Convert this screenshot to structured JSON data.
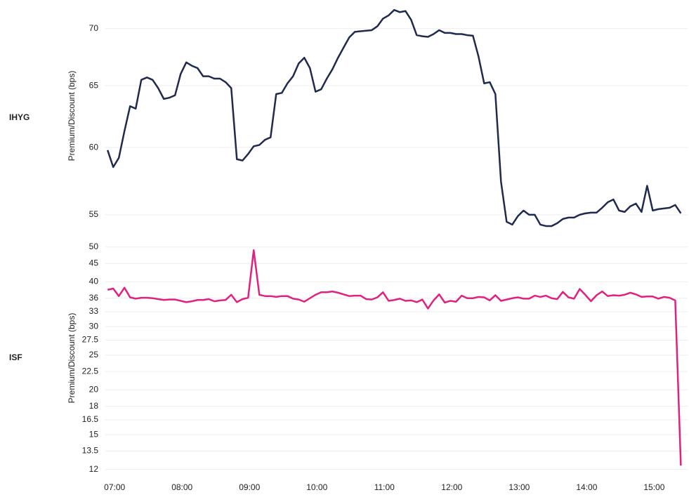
{
  "chart_data": [
    {
      "type": "line",
      "label": "IHYG",
      "y_label": "Premium/Discount (bps)",
      "log_scale": true,
      "grid": true,
      "x": [
        "07:00",
        "07:05",
        "07:10",
        "07:15",
        "07:20",
        "07:25",
        "07:30",
        "07:35",
        "07:40",
        "07:45",
        "07:50",
        "07:55",
        "08:00",
        "08:05",
        "08:10",
        "08:15",
        "08:20",
        "08:25",
        "08:30",
        "08:35",
        "08:40",
        "08:45",
        "08:50",
        "08:55",
        "09:00",
        "09:05",
        "09:10",
        "09:15",
        "09:20",
        "09:25",
        "09:30",
        "09:35",
        "09:40",
        "09:45",
        "09:50",
        "09:55",
        "10:00",
        "10:05",
        "10:10",
        "10:15",
        "10:20",
        "10:25",
        "10:30",
        "10:35",
        "10:40",
        "10:45",
        "10:50",
        "10:55",
        "11:00",
        "11:05",
        "11:10",
        "11:15",
        "11:20",
        "11:25",
        "11:30",
        "11:35",
        "11:40",
        "11:45",
        "11:50",
        "11:55",
        "12:00",
        "12:05",
        "12:10",
        "12:15",
        "12:20",
        "12:25",
        "12:30",
        "12:35",
        "12:40",
        "12:45",
        "12:50",
        "12:55",
        "13:00",
        "13:05",
        "13:10",
        "13:15",
        "13:20",
        "13:25",
        "13:30",
        "13:35",
        "13:40",
        "13:45",
        "13:50",
        "13:55",
        "14:00",
        "14:05",
        "14:10",
        "14:15",
        "14:20",
        "14:25",
        "14:30",
        "14:35",
        "14:40",
        "14:45",
        "14:50",
        "14:55",
        "15:00",
        "15:05",
        "15:10",
        "15:15",
        "15:20",
        "15:25",
        "15:30"
      ],
      "xlim": [
        "06:58",
        "15:36"
      ],
      "series": [
        {
          "color": "#1f2a4d",
          "values": [
            59.8,
            58.5,
            59.2,
            61.3,
            63.3,
            63.1,
            65.5,
            65.7,
            65.5,
            64.8,
            63.9,
            64.0,
            64.2,
            66.0,
            67.0,
            66.7,
            66.5,
            65.8,
            65.8,
            65.6,
            65.6,
            65.3,
            64.8,
            59.1,
            59.0,
            59.5,
            60.1,
            60.2,
            60.6,
            60.8,
            64.3,
            64.4,
            65.2,
            65.8,
            66.9,
            67.4,
            66.5,
            64.5,
            64.7,
            65.6,
            66.4,
            67.4,
            68.3,
            69.2,
            69.7,
            69.75,
            69.8,
            69.85,
            70.2,
            70.9,
            71.2,
            71.7,
            71.5,
            71.6,
            70.8,
            69.4,
            69.3,
            69.25,
            69.5,
            69.85,
            69.6,
            69.6,
            69.5,
            69.5,
            69.4,
            69.35,
            67.5,
            65.2,
            65.3,
            64.3,
            57.4,
            54.5,
            54.3,
            54.9,
            55.3,
            55.0,
            55.0,
            54.3,
            54.2,
            54.2,
            54.4,
            54.7,
            54.8,
            54.8,
            55.0,
            55.1,
            55.15,
            55.15,
            55.5,
            55.9,
            56.1,
            55.3,
            55.2,
            55.6,
            55.8,
            55.2,
            57.1,
            55.3,
            55.4,
            55.45,
            55.5,
            55.7,
            55.1
          ]
        }
      ],
      "ylim": [
        54.1,
        72.5
      ],
      "yticks": [
        55,
        60,
        65,
        70
      ]
    },
    {
      "type": "line",
      "label": "ISF",
      "y_label": "Premium/Discount (bps)",
      "log_scale": true,
      "grid": true,
      "x": [
        "07:00",
        "07:05",
        "07:10",
        "07:15",
        "07:20",
        "07:25",
        "07:30",
        "07:35",
        "07:40",
        "07:45",
        "07:50",
        "07:55",
        "08:00",
        "08:05",
        "08:10",
        "08:15",
        "08:20",
        "08:25",
        "08:30",
        "08:35",
        "08:40",
        "08:45",
        "08:50",
        "08:55",
        "09:00",
        "09:05",
        "09:10",
        "09:15",
        "09:20",
        "09:25",
        "09:30",
        "09:35",
        "09:40",
        "09:45",
        "09:50",
        "09:55",
        "10:00",
        "10:05",
        "10:10",
        "10:15",
        "10:20",
        "10:25",
        "10:30",
        "10:35",
        "10:40",
        "10:45",
        "10:50",
        "10:55",
        "11:00",
        "11:05",
        "11:10",
        "11:15",
        "11:20",
        "11:25",
        "11:30",
        "11:35",
        "11:40",
        "11:45",
        "11:50",
        "11:55",
        "12:00",
        "12:05",
        "12:10",
        "12:15",
        "12:20",
        "12:25",
        "12:30",
        "12:35",
        "12:40",
        "12:45",
        "12:50",
        "12:55",
        "13:00",
        "13:05",
        "13:10",
        "13:15",
        "13:20",
        "13:25",
        "13:30",
        "13:35",
        "13:40",
        "13:45",
        "13:50",
        "13:55",
        "14:00",
        "14:05",
        "14:10",
        "14:15",
        "14:20",
        "14:25",
        "14:30",
        "14:35",
        "14:40",
        "14:45",
        "14:50",
        "14:55",
        "15:00",
        "15:05",
        "15:10",
        "15:15",
        "15:20",
        "15:25",
        "15:30"
      ],
      "xlim": [
        "06:58",
        "15:36"
      ],
      "xticks": [
        "07:00",
        "08:00",
        "09:00",
        "10:00",
        "11:00",
        "12:00",
        "13:00",
        "14:00",
        "15:00"
      ],
      "series": [
        {
          "color": "#e0217f",
          "values": [
            38.0,
            38.3,
            36.5,
            38.5,
            36.2,
            35.9,
            36.1,
            36.1,
            36.0,
            35.8,
            35.6,
            35.7,
            35.7,
            35.4,
            35.1,
            35.3,
            35.6,
            35.6,
            35.8,
            35.3,
            35.5,
            35.6,
            36.8,
            35.1,
            35.8,
            36.1,
            49.0,
            36.8,
            36.5,
            36.5,
            36.3,
            36.5,
            36.5,
            35.9,
            35.7,
            35.2,
            36.0,
            36.8,
            37.4,
            37.4,
            37.6,
            37.3,
            36.9,
            36.5,
            36.6,
            36.6,
            35.8,
            35.7,
            36.2,
            37.4,
            35.4,
            35.6,
            35.9,
            35.4,
            35.5,
            35.1,
            35.7,
            33.7,
            35.5,
            36.9,
            35.0,
            35.4,
            35.2,
            36.6,
            36.0,
            36.0,
            36.3,
            36.2,
            35.5,
            36.7,
            35.4,
            35.7,
            36.0,
            36.2,
            35.9,
            35.9,
            36.6,
            36.3,
            36.6,
            36.0,
            35.8,
            37.5,
            36.2,
            35.9,
            38.2,
            36.8,
            35.3,
            36.7,
            37.6,
            36.5,
            36.7,
            36.6,
            36.8,
            37.3,
            36.9,
            36.3,
            36.4,
            36.4,
            35.9,
            36.3,
            36.1,
            35.5,
            12.3
          ]
        }
      ],
      "ylim": [
        11.4,
        52.5
      ],
      "yticks": [
        12,
        13.5,
        15,
        16.5,
        18,
        20,
        22.5,
        25,
        27.5,
        30,
        33,
        36,
        40,
        45,
        50
      ]
    }
  ]
}
